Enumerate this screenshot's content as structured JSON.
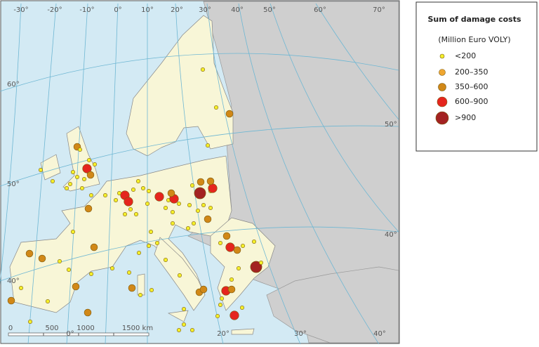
{
  "legend": {
    "title": "Sum of damage costs",
    "subtitle": "(Million Euro VOLY)",
    "items": [
      {
        "label": "<200",
        "color": "#f4ef2a"
      },
      {
        "label": "200–350",
        "color": "#efa630"
      },
      {
        "label": "350–600",
        "color": "#d18817"
      },
      {
        "label": "600–900",
        "color": "#e5251e"
      },
      {
        "label": ">900",
        "color": "#a32222"
      }
    ]
  },
  "graticule": {
    "top": [
      "-30°",
      "-20°",
      "-10°",
      "0°",
      "10°",
      "20°",
      "30°",
      "40°",
      "50°",
      "60°",
      "70°"
    ],
    "left": [
      "60°",
      "50°",
      "40°"
    ],
    "right": [
      "50°",
      "40°"
    ],
    "bottom": [
      "0°",
      "20°",
      "30°",
      "40°"
    ]
  },
  "scale_bar": {
    "labels": [
      "0",
      "500",
      "1000",
      "1500 km"
    ]
  }
}
